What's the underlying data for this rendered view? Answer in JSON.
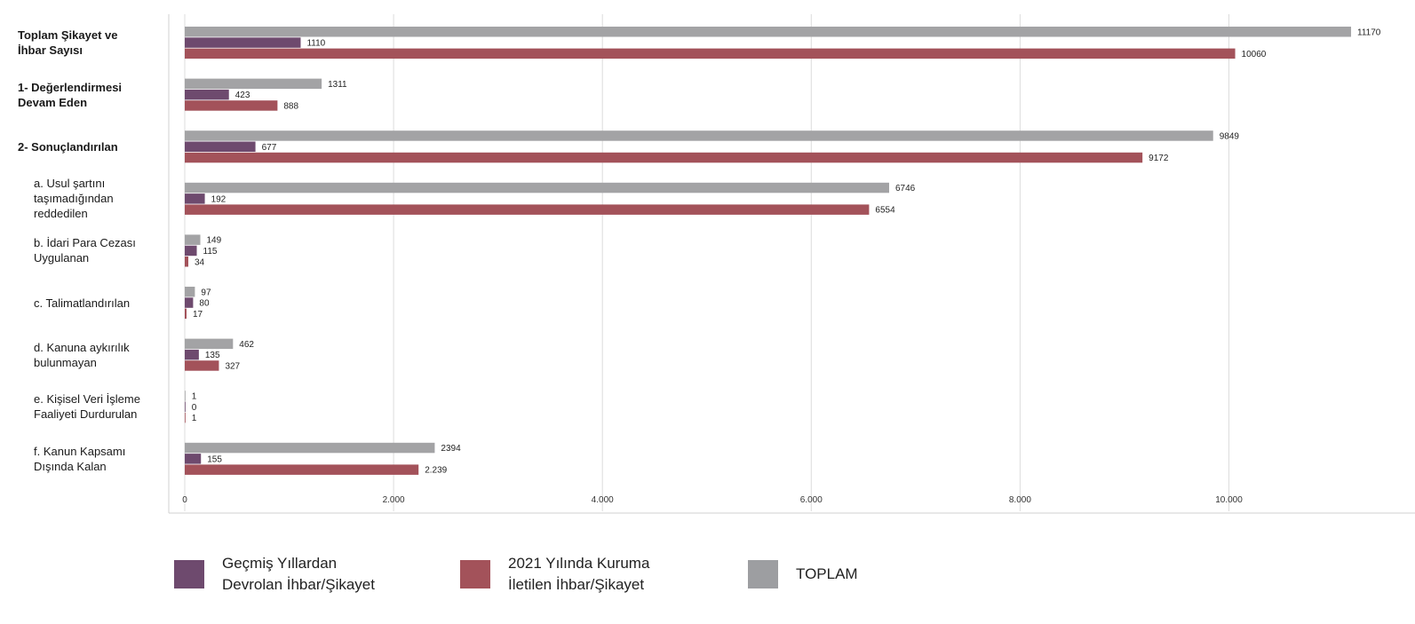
{
  "chart_data": {
    "type": "bar",
    "orientation": "horizontal",
    "title": "",
    "xlabel": "",
    "ylabel": "",
    "xlim": [
      0,
      11500
    ],
    "x_ticks": [
      0,
      2000,
      4000,
      6000,
      8000,
      10000
    ],
    "x_tick_labels": [
      "0",
      "2.000",
      "4.000",
      "6.000",
      "8.000",
      "10.000"
    ],
    "grid": "vertical",
    "legend_placement": "bottom",
    "categories": [
      {
        "label": "Toplam Şikayet ve\nİhbar Sayısı",
        "bold": true,
        "indent": false
      },
      {
        "label": "1- Değerlendirmesi\nDevam Eden",
        "bold": true,
        "indent": false
      },
      {
        "label": "2- Sonuçlandırılan",
        "bold": true,
        "indent": false
      },
      {
        "label": "a. Usul şartını\ntaşımadığından\nreddedilen",
        "bold": false,
        "indent": true
      },
      {
        "label": "b. İdari Para Cezası\nUygulanan",
        "bold": false,
        "indent": true
      },
      {
        "label": "c. Talimatlandırılan",
        "bold": false,
        "indent": true
      },
      {
        "label": "d. Kanuna aykırılık\nbulunmayan",
        "bold": false,
        "indent": true
      },
      {
        "label": "e. Kişisel Veri İşleme\nFaaliyeti Durdurulan",
        "bold": false,
        "indent": true
      },
      {
        "label": "f. Kanun Kapsamı\nDışında Kalan",
        "bold": false,
        "indent": true
      }
    ],
    "series": [
      {
        "key": "toplam",
        "color": "#a3a3a5",
        "values": [
          11170,
          1311,
          9849,
          6746,
          149,
          97,
          462,
          1,
          2394
        ],
        "data_labels": [
          "11170",
          "1311",
          "9849",
          "6746",
          "149",
          "97",
          "462",
          "1",
          "2394"
        ]
      },
      {
        "key": "gecmis",
        "color": "#6e4a6e",
        "values": [
          1110,
          423,
          677,
          192,
          115,
          80,
          135,
          0,
          155
        ],
        "data_labels": [
          "1110",
          "423",
          "677",
          "192",
          "115",
          "80",
          "135",
          "0",
          "155"
        ]
      },
      {
        "key": "yil2021",
        "color": "#a3525a",
        "values": [
          10060,
          888,
          9172,
          6554,
          34,
          17,
          327,
          1,
          2239
        ],
        "data_labels": [
          "10060",
          "888",
          "9172",
          "6554",
          "34",
          "17",
          "327",
          "1",
          "2.239"
        ]
      }
    ],
    "legend": [
      {
        "key": "gecmis",
        "text": "Geçmiş Yıllardan\nDevrolan İhbar/Şikayet",
        "color": "#6e4a6e"
      },
      {
        "key": "yil2021",
        "text": "2021 Yılında Kuruma\nİletilen İhbar/Şikayet",
        "color": "#a3525a"
      },
      {
        "key": "toplam",
        "text": "TOPLAM",
        "color": "#9d9ea1"
      }
    ]
  }
}
